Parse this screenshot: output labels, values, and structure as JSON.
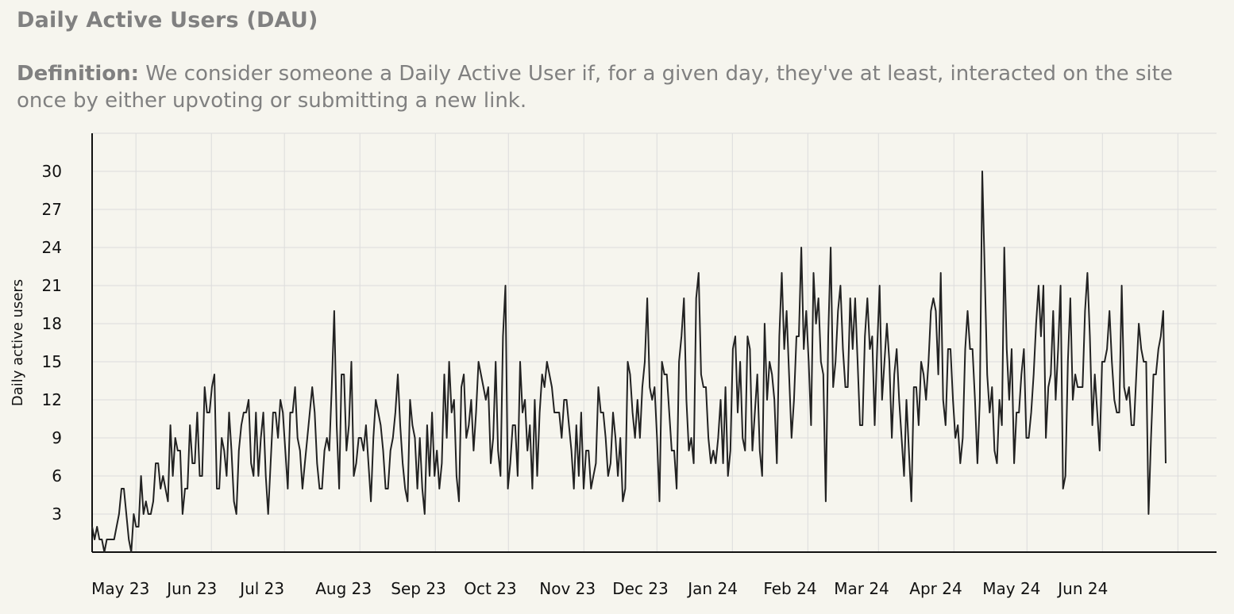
{
  "title": "Daily Active Users (DAU)",
  "definition": {
    "label": "Definition:",
    "text": "We consider someone a Daily Active User if, for a given day, they've at least, interacted on the site once by either upvoting or submitting a new link."
  },
  "colors": {
    "background": "#f6f5ee",
    "text": "#808080",
    "grid": "#dcdcdc",
    "line": "#222222",
    "axis": "#111111"
  },
  "chart_data": {
    "type": "line",
    "title": "",
    "xlabel": "",
    "ylabel": "Daily active users",
    "x_start": "2023-04-13",
    "x_end": "2024-06-27",
    "ylim": [
      0,
      33
    ],
    "y_ticks": [
      3,
      6,
      9,
      12,
      15,
      18,
      21,
      24,
      27,
      30
    ],
    "x_ticks": [
      {
        "date": "2023-05-01",
        "label": "May 23"
      },
      {
        "date": "2023-06-01",
        "label": "Jun 23"
      },
      {
        "date": "2023-07-01",
        "label": "Jul 23"
      },
      {
        "date": "2023-08-01",
        "label": "Aug 23"
      },
      {
        "date": "2023-09-01",
        "label": "Sep 23"
      },
      {
        "date": "2023-10-01",
        "label": "Oct 23"
      },
      {
        "date": "2023-11-01",
        "label": "Nov 23"
      },
      {
        "date": "2023-12-01",
        "label": "Dec 23"
      },
      {
        "date": "2024-01-01",
        "label": "Jan 24"
      },
      {
        "date": "2024-02-01",
        "label": "Feb 24"
      },
      {
        "date": "2024-03-01",
        "label": "Mar 24"
      },
      {
        "date": "2024-04-01",
        "label": "Apr 24"
      },
      {
        "date": "2024-05-01",
        "label": "May 24"
      },
      {
        "date": "2024-06-01",
        "label": "Jun 24"
      }
    ],
    "grid": true,
    "legend": "none",
    "series": [
      {
        "values": [
          2,
          1,
          2,
          1,
          1,
          0,
          1,
          1,
          1,
          1,
          2,
          3,
          5,
          5,
          3,
          1,
          0,
          3,
          2,
          2,
          6,
          3,
          4,
          3,
          3,
          4,
          7,
          7,
          5,
          6,
          5,
          4,
          10,
          6,
          9,
          8,
          8,
          3,
          5,
          5,
          10,
          7,
          7,
          11,
          6,
          6,
          13,
          11,
          11,
          13,
          14,
          5,
          5,
          9,
          8,
          6,
          11,
          8,
          4,
          3,
          8,
          10,
          11,
          11,
          12,
          7,
          6,
          11,
          6,
          9,
          11,
          6,
          3,
          7,
          11,
          11,
          9,
          12,
          11,
          8,
          5,
          11,
          11,
          13,
          9,
          8,
          5,
          7,
          9,
          11,
          13,
          11,
          7,
          5,
          5,
          8,
          9,
          8,
          13,
          19,
          10,
          5,
          14,
          14,
          8,
          10,
          15,
          6,
          7,
          9,
          9,
          8,
          10,
          7,
          4,
          9,
          12,
          11,
          10,
          8,
          5,
          5,
          8,
          9,
          11,
          14,
          10,
          7,
          5,
          4,
          12,
          10,
          9,
          5,
          9,
          5,
          3,
          10,
          6,
          11,
          6,
          8,
          5,
          7,
          14,
          9,
          15,
          11,
          12,
          6,
          4,
          13,
          14,
          9,
          10,
          12,
          8,
          11,
          15,
          14,
          13,
          12,
          13,
          7,
          9,
          15,
          8,
          6,
          17,
          21,
          5,
          7,
          10,
          10,
          6,
          15,
          11,
          12,
          8,
          10,
          5,
          12,
          6,
          11,
          14,
          13,
          15,
          14,
          13,
          11,
          11,
          11,
          9,
          12,
          12,
          10,
          8,
          5,
          10,
          6,
          11,
          5,
          8,
          8,
          5,
          6,
          7,
          13,
          11,
          11,
          9,
          6,
          7,
          11,
          9,
          6,
          9,
          4,
          5,
          15,
          14,
          11,
          9,
          12,
          9,
          13,
          15,
          20,
          13,
          12,
          13,
          9,
          4,
          15,
          14,
          14,
          11,
          8,
          8,
          5,
          15,
          17,
          20,
          12,
          8,
          9,
          7,
          20,
          22,
          14,
          13,
          13,
          9,
          7,
          8,
          7,
          9,
          12,
          7,
          13,
          6,
          8,
          16,
          17,
          11,
          15,
          9,
          8,
          17,
          16,
          8,
          11,
          14,
          8,
          6,
          18,
          12,
          15,
          14,
          12,
          7,
          17,
          22,
          16,
          19,
          14,
          9,
          12,
          17,
          17,
          24,
          16,
          19,
          15,
          10,
          22,
          18,
          20,
          15,
          14,
          4,
          17,
          24,
          13,
          15,
          19,
          21,
          16,
          13,
          13,
          20,
          16,
          20,
          15,
          10,
          10,
          17,
          20,
          16,
          17,
          10,
          16,
          21,
          12,
          15,
          18,
          15,
          9,
          14,
          16,
          12,
          9,
          6,
          12,
          8,
          4,
          13,
          13,
          10,
          15,
          14,
          12,
          15,
          19,
          20,
          19,
          14,
          22,
          12,
          10,
          16,
          16,
          12,
          9,
          10,
          7,
          9,
          16,
          19,
          16,
          16,
          12,
          7,
          12,
          30,
          22,
          14,
          11,
          13,
          8,
          7,
          12,
          10,
          24,
          16,
          12,
          16,
          7,
          11,
          11,
          14,
          16,
          9,
          9,
          11,
          14,
          18,
          21,
          17,
          21,
          9,
          13,
          14,
          19,
          12,
          16,
          21,
          5,
          6,
          15,
          20,
          12,
          14,
          13,
          13,
          13,
          19,
          22,
          17,
          10,
          14,
          11,
          8,
          15,
          15,
          16,
          19,
          15,
          12,
          11,
          11,
          21,
          13,
          12,
          13,
          10,
          10,
          14,
          18,
          16,
          15,
          15,
          3,
          9,
          14,
          14,
          16,
          17,
          19,
          7
        ]
      }
    ]
  }
}
